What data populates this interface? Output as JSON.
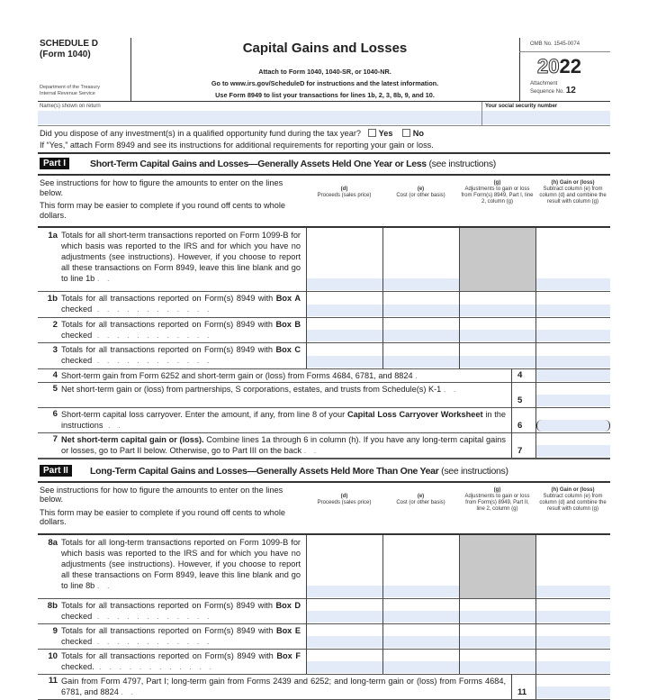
{
  "header": {
    "schedule": "SCHEDULE D",
    "form": "(Form 1040)",
    "dept1": "Department of the Treasury",
    "dept2": "Internal Revenue Service",
    "title": "Capital Gains and Losses",
    "line1": "Attach to Form 1040, 1040-SR, or 1040-NR.",
    "line2": "Go to www.irs.gov/ScheduleD for instructions and the latest information.",
    "line3": "Use Form 8949 to list your transactions for lines 1b, 2, 3, 8b, 9, and 10.",
    "omb": "OMB No. 1545-0074",
    "year_light": "20",
    "year_bold": "22",
    "attachment": "Attachment",
    "sequence": "Sequence No.",
    "sequence_no": "12"
  },
  "name_label": "Name(s) shown on return",
  "ssn_label": "Your social security number",
  "question": {
    "text": "Did you dispose of any investment(s) in a qualified opportunity fund during the tax year?",
    "yes": "Yes",
    "no": "No",
    "note": "If “Yes,” attach Form 8949 and see its instructions for additional requirements for reporting your gain or loss."
  },
  "intro": {
    "p1": "See instructions for how to figure the amounts to enter on the lines below.",
    "p2": "This form may be easier to complete if you round off cents to whole dollars."
  },
  "columns": [
    {
      "l": "(d)",
      "t": "Proceeds (sales price)"
    },
    {
      "l": "(e)",
      "t": "Cost (or other basis)"
    },
    {
      "l": "(g)",
      "t": "Adjustments to gain or loss from Form(s) 8949, Part I, line 2, column (g)",
      "t2": "Adjustments to gain or loss from Form(s) 8949, Part II, line 2, column (g)"
    },
    {
      "l": "(h) Gain or (loss)",
      "t": "Subtract column (e) from column (d) and combine the result with column (g)"
    }
  ],
  "part1": {
    "badge": "Part I",
    "title": "Short-Term Capital Gains and Losses—Generally Assets Held One Year or Less",
    "see": "(see instructions)",
    "grid_lines": [
      {
        "n": "1a",
        "text": "Totals for all short-term transactions reported on Form 1099-B for which basis was reported to the IRS and for which you have no adjustments (see instructions). However, if you choose to report all these transactions on Form 8949, leave this line blank and go to line 1b",
        "shaded_g": true
      },
      {
        "n": "1b",
        "text": "Totals for all transactions reported on Form(s) 8949 with",
        "bold": "Box A",
        "rest": "checked"
      },
      {
        "n": "2",
        "text": "Totals for all transactions reported on Form(s) 8949 with",
        "bold": "Box B",
        "rest": "checked"
      },
      {
        "n": "3",
        "text": "Totals for all transactions reported on Form(s) 8949 with",
        "bold": "Box C",
        "rest": "checked"
      }
    ],
    "wide_lines": [
      {
        "n": "4",
        "text": "Short-term gain from Form 6252 and short-term gain or (loss) from Forms 4684, 6781, and 8824"
      },
      {
        "n": "5",
        "text": "Net short-term gain or (loss) from partnerships, S corporations, estates, and trusts from Schedule(s) K-1"
      },
      {
        "n": "6",
        "text": "Short-term capital loss carryover. Enter the amount, if any, from line 8 of your",
        "bold": "Capital Loss Carryover Worksheet",
        "rest": "in the instructions",
        "paren": true
      },
      {
        "n": "7",
        "bold0": "Net short-term capital gain or (loss).",
        "text": "Combine lines 1a through 6 in column (h). If you have any long-term capital gains or losses, go to Part II below. Otherwise, go to Part III on the back"
      }
    ]
  },
  "part2": {
    "badge": "Part II",
    "title": "Long-Term Capital Gains and Losses—Generally Assets Held More Than One Year",
    "see": "(see instructions)",
    "grid_lines": [
      {
        "n": "8a",
        "text": "Totals for all long-term transactions reported on Form 1099-B for which basis was reported to the IRS and for which you have no adjustments (see instructions). However, if you choose to report all these transactions on Form 8949, leave this line blank and go to line 8b",
        "shaded_g": true
      },
      {
        "n": "8b",
        "text": "Totals for all transactions reported on Form(s) 8949 with",
        "bold": "Box D",
        "rest": "checked"
      },
      {
        "n": "9",
        "text": "Totals for all transactions reported on Form(s) 8949 with",
        "bold": "Box E",
        "rest": "checked"
      },
      {
        "n": "10",
        "text": "Totals for all transactions reported on Form(s) 8949 with",
        "bold": "Box F",
        "rest": "checked."
      }
    ],
    "wide_lines": [
      {
        "n": "11",
        "text": "Gain from Form 4797, Part I; long-term gain from Forms 2439 and 6252; and long-term gain or (loss) from Forms 4684, 6781, and 8824"
      }
    ]
  },
  "colors": {
    "fill": "#e4ebf8",
    "shade": "#c8c8c8"
  }
}
